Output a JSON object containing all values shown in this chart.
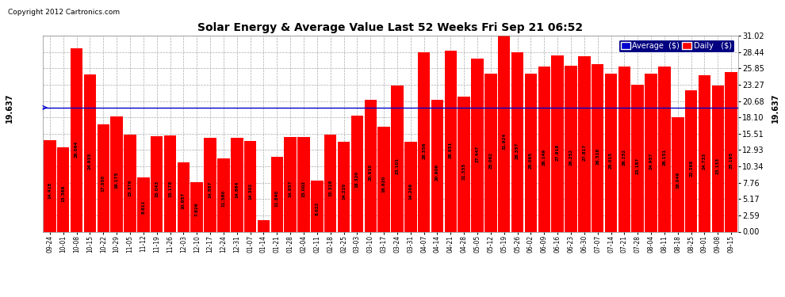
{
  "title": "Solar Energy & Average Value Last 52 Weeks Fri Sep 21 06:52",
  "copyright": "Copyright 2012 Cartronics.com",
  "average_line": 19.637,
  "average_label": "19.637",
  "bar_color": "#ff0000",
  "average_line_color": "#0000cd",
  "background_color": "#ffffff",
  "plot_bg_color": "#ffffff",
  "grid_color": "#aaaaaa",
  "yticks": [
    0.0,
    2.59,
    5.17,
    7.76,
    10.34,
    12.93,
    15.51,
    18.1,
    20.68,
    23.27,
    25.85,
    28.44,
    31.02
  ],
  "legend_avg_color": "#0000cc",
  "legend_daily_color": "#ff0000",
  "categories": [
    "09-24",
    "10-01",
    "10-08",
    "10-15",
    "10-22",
    "10-29",
    "11-05",
    "11-12",
    "11-19",
    "11-26",
    "12-03",
    "12-10",
    "12-17",
    "12-24",
    "12-31",
    "01-07",
    "01-14",
    "01-21",
    "01-28",
    "02-04",
    "02-11",
    "02-18",
    "02-25",
    "03-03",
    "03-10",
    "03-17",
    "03-24",
    "03-31",
    "04-07",
    "04-14",
    "04-21",
    "04-28",
    "05-05",
    "05-12",
    "05-19",
    "05-26",
    "06-02",
    "06-09",
    "06-16",
    "06-23",
    "06-30",
    "07-07",
    "07-14",
    "07-21",
    "07-28",
    "08-04",
    "08-11",
    "08-18",
    "08-25",
    "09-01",
    "09-08",
    "09-15"
  ],
  "values": [
    14.418,
    13.368,
    29.064,
    24.935,
    17.03,
    18.175,
    15.376,
    8.611,
    15.043,
    15.178,
    10.957,
    7.826,
    14.887,
    11.58,
    14.864,
    14.302,
    1.802,
    11.84,
    14.957,
    15.002,
    8.022,
    15.328,
    14.22,
    18.32,
    20.91,
    16.62,
    23.101,
    14.206,
    28.356,
    20.906,
    28.651,
    21.335,
    27.447,
    25.062,
    31.924,
    28.357,
    25.065,
    26.149,
    27.918,
    26.252,
    27.817,
    26.518,
    25.015,
    26.152,
    23.187,
    24.957,
    26.151,
    18.049,
    22.368,
    24.733,
    23.133,
    25.195
  ]
}
